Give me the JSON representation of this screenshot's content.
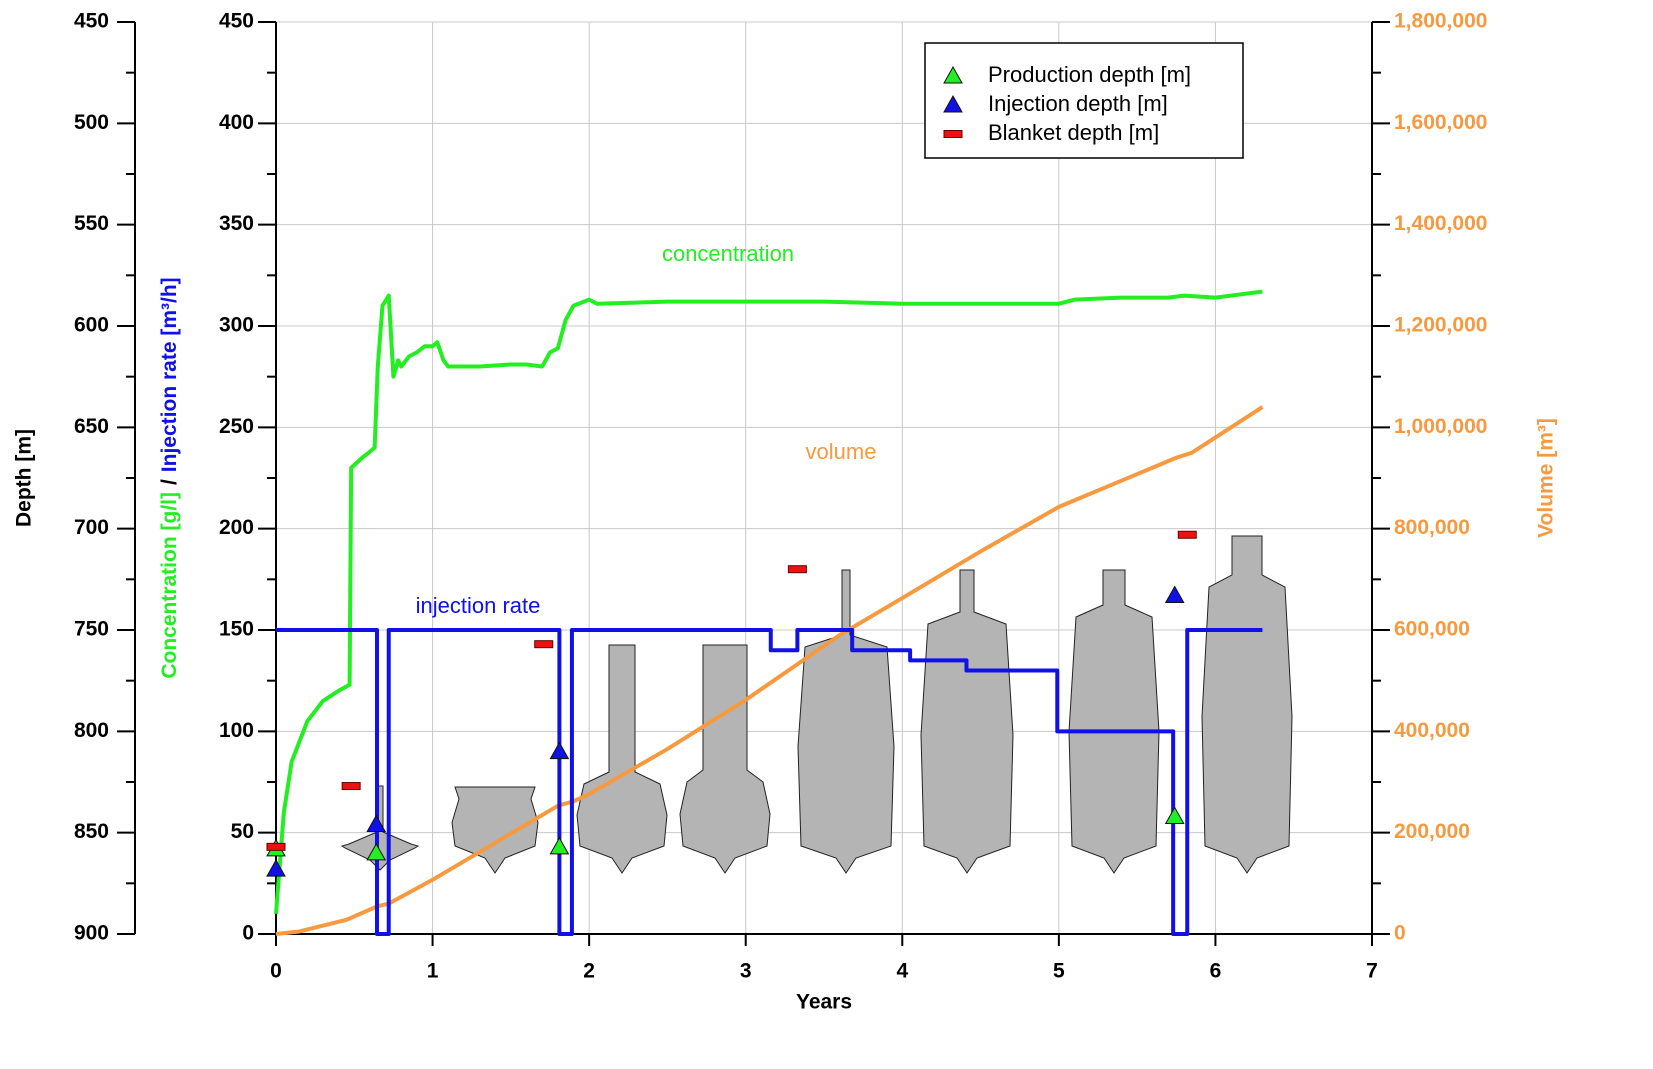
{
  "chart_data": {
    "type": "line",
    "xlabel": "Years",
    "ylabel": [
      "Concentration [g/l]",
      "/",
      "Injection rate [m³/h]"
    ],
    "y2label": "Volume [m³]",
    "xlim": [
      0,
      7
    ],
    "xticks": [
      0,
      1,
      2,
      3,
      4,
      5,
      6,
      7
    ],
    "ylim": [
      0,
      450
    ],
    "yticks": [
      0,
      50,
      100,
      150,
      200,
      250,
      300,
      350,
      400,
      450
    ],
    "minor_yticks": [
      25,
      75,
      125,
      175,
      225,
      275,
      325,
      375,
      425
    ],
    "y2lim": [
      0,
      1800000
    ],
    "y2ticks": [
      0,
      {
        "value": 200000,
        "label": "200,000"
      },
      {
        "value": 400000,
        "label": "400,000"
      },
      {
        "value": 600000,
        "label": "600,000"
      },
      {
        "value": 800000,
        "label": "800,000"
      },
      {
        "value": 1000000,
        "label": "1,000,000"
      },
      {
        "value": 1200000,
        "label": "1,200,000"
      },
      {
        "value": 1400000,
        "label": "1,400,000"
      },
      {
        "value": 1600000,
        "label": "1,600,000"
      },
      {
        "value": 1800000,
        "label": "1,800,000"
      }
    ],
    "y2color": "#f7993f",
    "depth_axis": {
      "label": "Depth [m]",
      "lim": [
        450,
        900
      ],
      "inverted": true,
      "ticks": [
        450,
        500,
        550,
        600,
        650,
        700,
        750,
        800,
        850,
        900
      ]
    },
    "grid": true,
    "legend": "upper right",
    "series": [
      {
        "name": "concentration",
        "color": "#22ee22",
        "axis": "y",
        "x": [
          0,
          0.05,
          0.1,
          0.2,
          0.3,
          0.4,
          0.47,
          0.48,
          0.55,
          0.6,
          0.63,
          0.65,
          0.68,
          0.72,
          0.75,
          0.78,
          0.8,
          0.85,
          0.9,
          0.95,
          1.0,
          1.03,
          1.07,
          1.1,
          1.3,
          1.5,
          1.6,
          1.7,
          1.75,
          1.8,
          1.85,
          1.9,
          2.0,
          2.05,
          2.5,
          3.0,
          3.5,
          4.0,
          4.5,
          5.0,
          5.1,
          5.4,
          5.7,
          5.8,
          6.0,
          6.3
        ],
        "values": [
          10,
          60,
          85,
          105,
          115,
          120,
          123,
          230,
          235,
          238,
          240,
          280,
          310,
          315,
          275,
          283,
          280,
          285,
          287,
          290,
          290,
          292,
          283,
          280,
          280,
          281,
          281,
          280,
          287,
          289,
          303,
          310,
          313,
          311,
          312,
          312,
          312,
          311,
          311,
          311,
          313,
          314,
          314,
          315,
          314,
          317
        ]
      },
      {
        "name": "volume",
        "color": "#f7993f",
        "axis": "y2",
        "x": [
          0,
          0.15,
          0.45,
          0.65,
          0.72,
          1.0,
          1.8,
          1.9,
          2.0,
          2.5,
          3.0,
          3.6,
          4.0,
          4.5,
          5.0,
          5.75,
          5.85,
          6.3
        ],
        "values": [
          0,
          5000,
          28000,
          55000,
          60000,
          107000,
          253000,
          262000,
          276000,
          365000,
          462000,
          590000,
          663000,
          755000,
          843000,
          940000,
          950000,
          1040000
        ]
      },
      {
        "name": "injection rate",
        "color": "#1010e8",
        "axis": "y",
        "x": [
          0,
          0.645,
          0.645,
          0.72,
          0.72,
          1.81,
          1.81,
          1.89,
          1.89,
          3.16,
          3.16,
          3.33,
          3.33,
          3.68,
          3.68,
          4.05,
          4.05,
          4.41,
          4.41,
          4.99,
          4.99,
          5.73,
          5.73,
          5.82,
          5.82,
          6.3
        ],
        "values": [
          150,
          150,
          0,
          0,
          150,
          150,
          0,
          0,
          150,
          150,
          140,
          140,
          150,
          150,
          140,
          140,
          135,
          135,
          130,
          130,
          100,
          100,
          0,
          0,
          150,
          150
        ]
      }
    ],
    "markers": [
      {
        "name": "Production depth [m]",
        "shape": "triangle",
        "color": "#22ee22",
        "axis": "depth",
        "x": [
          0,
          0.64,
          1.81,
          5.74
        ],
        "values": [
          858,
          860,
          857,
          842
        ]
      },
      {
        "name": "Injection depth [m]",
        "shape": "triangle",
        "color": "#1010e8",
        "axis": "depth",
        "x": [
          0,
          0.64,
          1.81,
          5.74
        ],
        "values": [
          868,
          846,
          810,
          733
        ]
      },
      {
        "name": "Blanket depth [m]",
        "shape": "dash",
        "color": "#ee1111",
        "axis": "depth",
        "x": [
          0,
          0.48,
          1.71,
          3.33,
          5.82
        ],
        "values": [
          857,
          827,
          757,
          720,
          703
        ]
      }
    ]
  }
}
